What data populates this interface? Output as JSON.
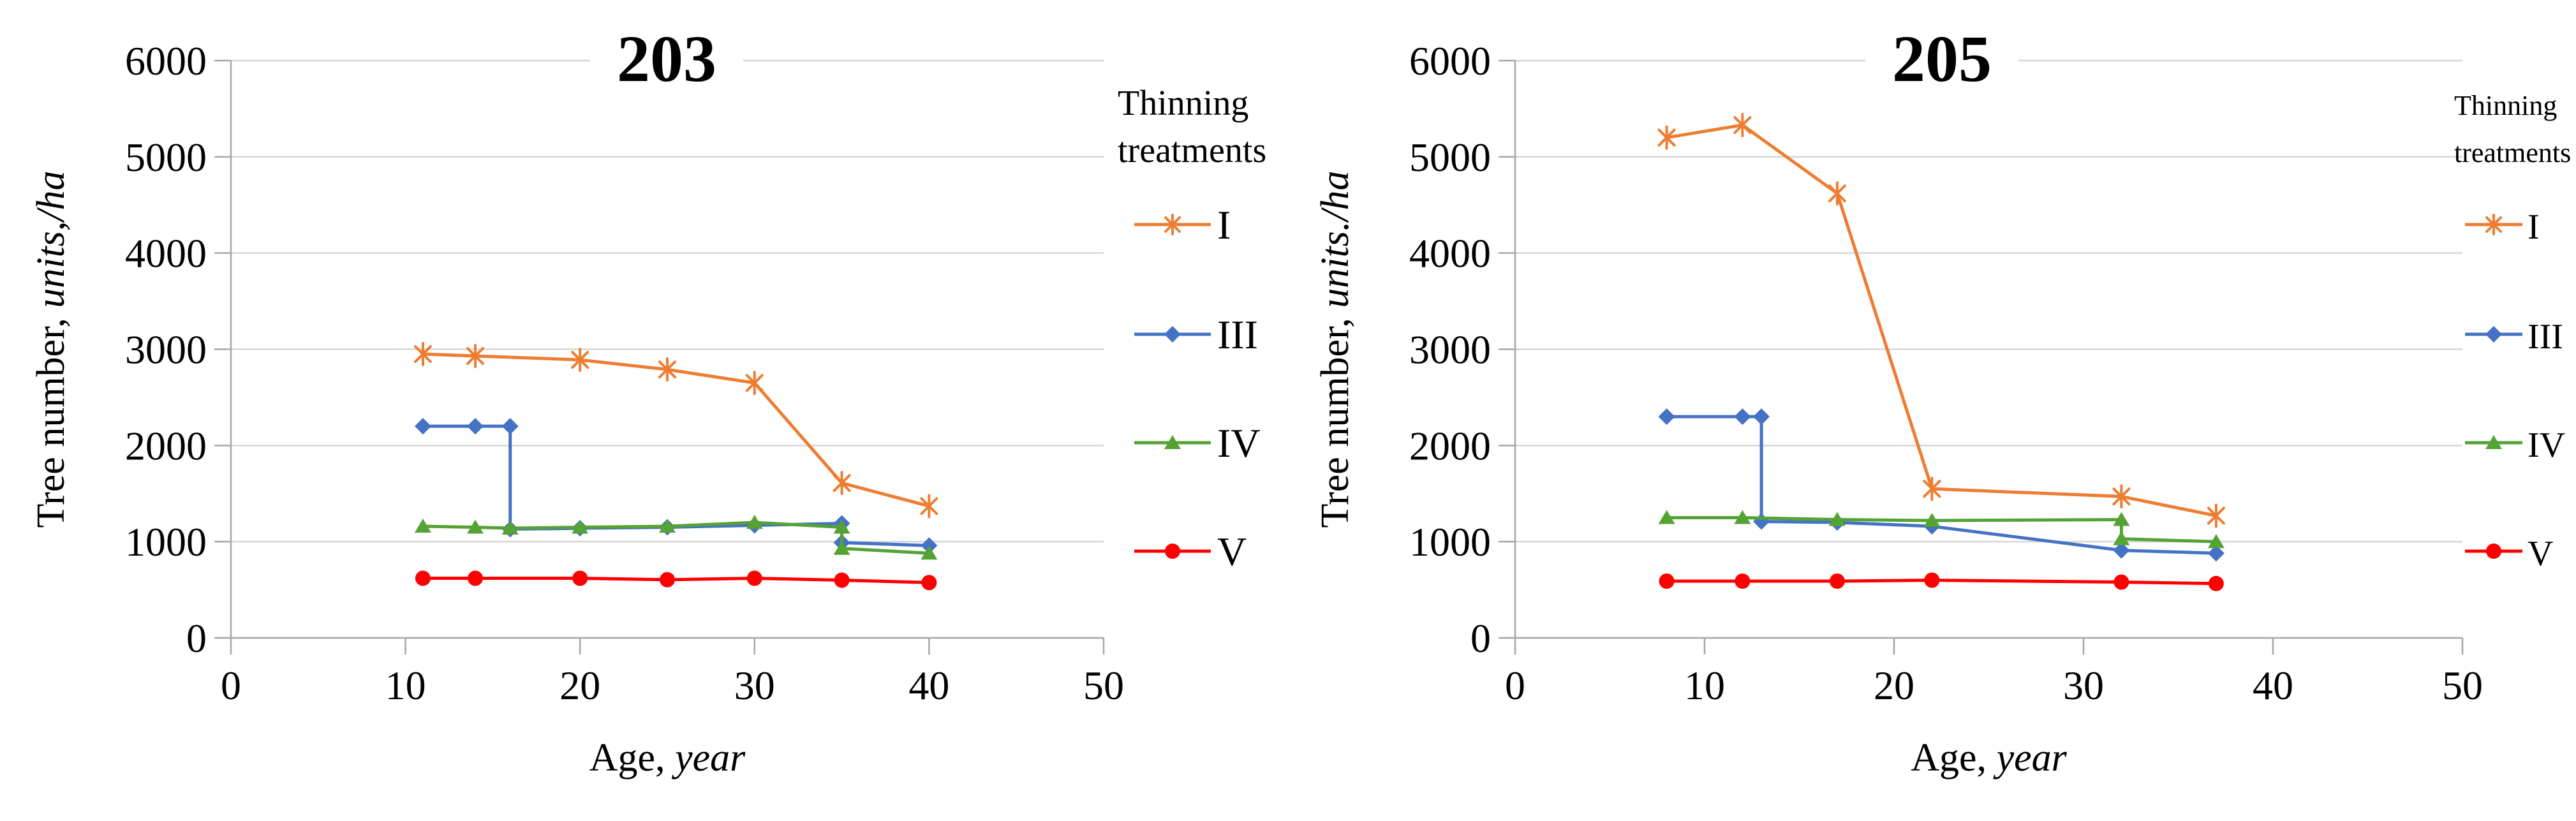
{
  "figure": {
    "background": "#FFFFFF"
  },
  "chart_data": [
    {
      "type": "line",
      "title": "203",
      "x_axis": {
        "label_regular": "Age, ",
        "label_italic": "year",
        "ticks": [
          0,
          10,
          20,
          30,
          40,
          50
        ],
        "range": [
          0,
          50
        ]
      },
      "y_axis": {
        "label_regular": "Tree number, ",
        "label_italic": "units,/ha",
        "ticks": [
          0,
          1000,
          2000,
          3000,
          4000,
          5000,
          6000
        ],
        "range": [
          0,
          6000
        ]
      },
      "legend": {
        "title_line1": "Thinning",
        "title_line2": "treatments",
        "position": "right"
      },
      "grid": "horizontal",
      "series": [
        {
          "name": "I",
          "marker": "asterisk",
          "color": "#ED7D31",
          "points": [
            [
              11,
              2950
            ],
            [
              14,
              2930
            ],
            [
              20,
              2890
            ],
            [
              25,
              2790
            ],
            [
              30,
              2650
            ],
            [
              35,
              1610
            ],
            [
              40,
              1370
            ]
          ]
        },
        {
          "name": "III",
          "marker": "diamond",
          "color": "#4472C4",
          "points": [
            [
              11,
              2200
            ],
            [
              14,
              2200
            ],
            [
              16,
              2200
            ],
            [
              16,
              1130
            ],
            [
              20,
              1140
            ],
            [
              25,
              1150
            ],
            [
              30,
              1170
            ],
            [
              35,
              1190
            ],
            [
              35,
              990
            ],
            [
              40,
              960
            ]
          ]
        },
        {
          "name": "IV",
          "marker": "triangle",
          "color": "#54A334",
          "points": [
            [
              11,
              1160
            ],
            [
              14,
              1150
            ],
            [
              16,
              1140
            ],
            [
              20,
              1150
            ],
            [
              25,
              1160
            ],
            [
              30,
              1200
            ],
            [
              35,
              1150
            ],
            [
              35,
              930
            ],
            [
              40,
              880
            ]
          ]
        },
        {
          "name": "V",
          "marker": "circle",
          "color": "#FF0000",
          "points": [
            [
              11,
              620
            ],
            [
              14,
              620
            ],
            [
              20,
              620
            ],
            [
              25,
              605
            ],
            [
              30,
              620
            ],
            [
              35,
              600
            ],
            [
              40,
              575
            ]
          ]
        }
      ]
    },
    {
      "type": "line",
      "title": "205",
      "x_axis": {
        "label_regular": "Age, ",
        "label_italic": "year",
        "ticks": [
          0,
          10,
          20,
          30,
          40,
          50
        ],
        "range": [
          0,
          50
        ]
      },
      "y_axis": {
        "label_regular": "Tree number, ",
        "label_italic": "units./ha",
        "ticks": [
          0,
          1000,
          2000,
          3000,
          4000,
          5000,
          6000
        ],
        "range": [
          0,
          6000
        ]
      },
      "legend": {
        "title_line1": "Thinning",
        "title_line2": "treatments",
        "position": "right"
      },
      "grid": "horizontal",
      "series": [
        {
          "name": "I",
          "marker": "asterisk",
          "color": "#ED7D31",
          "points": [
            [
              8,
              5200
            ],
            [
              12,
              5330
            ],
            [
              17,
              4620
            ],
            [
              22,
              1550
            ],
            [
              32,
              1470
            ],
            [
              37,
              1270
            ]
          ]
        },
        {
          "name": "III",
          "marker": "diamond",
          "color": "#4472C4",
          "points": [
            [
              8,
              2300
            ],
            [
              12,
              2300
            ],
            [
              13,
              2300
            ],
            [
              13,
              1210
            ],
            [
              17,
              1200
            ],
            [
              22,
              1160
            ],
            [
              32,
              910
            ],
            [
              37,
              880
            ]
          ]
        },
        {
          "name": "IV",
          "marker": "triangle",
          "color": "#54A334",
          "points": [
            [
              8,
              1250
            ],
            [
              12,
              1250
            ],
            [
              17,
              1230
            ],
            [
              22,
              1220
            ],
            [
              32,
              1230
            ],
            [
              32,
              1030
            ],
            [
              37,
              1000
            ]
          ]
        },
        {
          "name": "V",
          "marker": "circle",
          "color": "#FF0000",
          "points": [
            [
              8,
              590
            ],
            [
              12,
              590
            ],
            [
              17,
              590
            ],
            [
              22,
              600
            ],
            [
              32,
              580
            ],
            [
              37,
              565
            ]
          ]
        }
      ]
    }
  ],
  "colors": {
    "gridline": "#D6D6D6",
    "axis": "#A6A6A6",
    "text": "#000000",
    "series_I": "#ED7D31",
    "series_III": "#4472C4",
    "series_IV": "#54A334",
    "series_V": "#FF0000"
  }
}
